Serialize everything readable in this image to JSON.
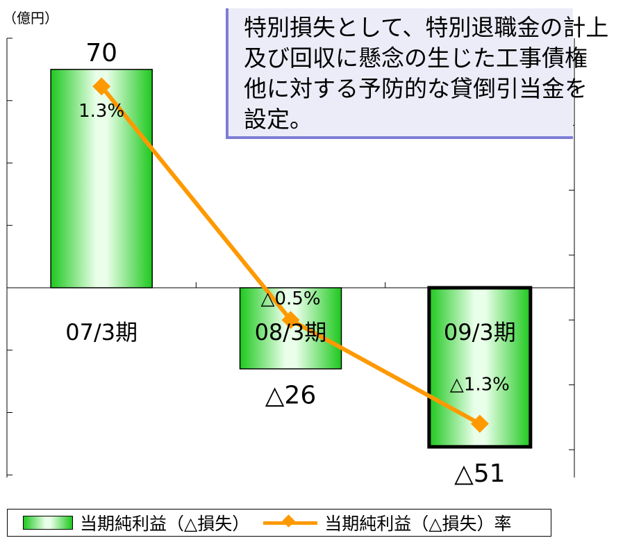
{
  "unit_label": "（億円）",
  "callout": {
    "lines": [
      "特別損失として、特別退職金の計上",
      "及び回収に懸念の生じた工事債権",
      "他に対する予防的な貸倒引当金を",
      "設定。"
    ]
  },
  "legend": {
    "bar_label": "当期純利益（△損失）",
    "line_label": "当期純利益（△損失）率"
  },
  "colors": {
    "bar_edge": "#1ec81e",
    "bar_center": "#eaffea",
    "line": "#ff9900",
    "callout_border": "#7d7dd6",
    "callout_fill": "#ececf8"
  },
  "chart_data": {
    "type": "bar",
    "categories": [
      "07/3期",
      "08/3期",
      "09/3期"
    ],
    "series": [
      {
        "values": [
          70,
          -26,
          -51
        ],
        "value_labels": [
          "70",
          "△26",
          "△51"
        ]
      },
      {
        "type": "line",
        "values": [
          1.3,
          -0.5,
          -1.3
        ],
        "value_labels": [
          "1.3%",
          "△0.5%",
          "△1.3%"
        ]
      }
    ],
    "ylim": [
      -60,
      80
    ],
    "y2lim": [
      -1.5,
      1.5
    ],
    "highlight_category": "09/3期",
    "grid": false
  }
}
